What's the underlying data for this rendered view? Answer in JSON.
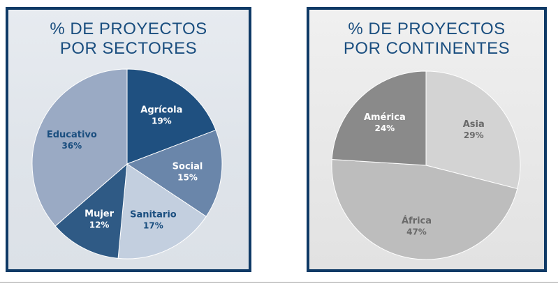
{
  "chart_data": [
    {
      "type": "pie",
      "title_lines": [
        "% DE PROYECTOS",
        "POR SECTORES"
      ],
      "slices": [
        {
          "label": "Agrícola",
          "value": 19,
          "value_text": "19%",
          "color": "#1f5080",
          "text_color": "#ffffff"
        },
        {
          "label": "Social",
          "value": 15,
          "value_text": "15%",
          "color": "#6a86aa",
          "text_color": "#ffffff"
        },
        {
          "label": "Sanitario",
          "value": 17,
          "value_text": "17%",
          "color": "#c3cfdf",
          "text_color": "#1a4e7f"
        },
        {
          "label": "Mujer",
          "value": 12,
          "value_text": "12%",
          "color": "#2f5a85",
          "text_color": "#ffffff"
        },
        {
          "label": "Educativo",
          "value": 36,
          "value_text": "36%",
          "color": "#9aaac4",
          "text_color": "#1a4e7f"
        }
      ]
    },
    {
      "type": "pie",
      "title_lines": [
        "% DE PROYECTOS",
        "POR CONTINENTES"
      ],
      "slices": [
        {
          "label": "Asia",
          "value": 29,
          "value_text": "29%",
          "color": "#d3d3d3",
          "text_color": "#6a6a6a"
        },
        {
          "label": "África",
          "value": 47,
          "value_text": "47%",
          "color": "#bdbdbd",
          "text_color": "#6a6a6a"
        },
        {
          "label": "América",
          "value": 24,
          "value_text": "24%",
          "color": "#8a8a8a",
          "text_color": "#ffffff"
        }
      ]
    }
  ]
}
